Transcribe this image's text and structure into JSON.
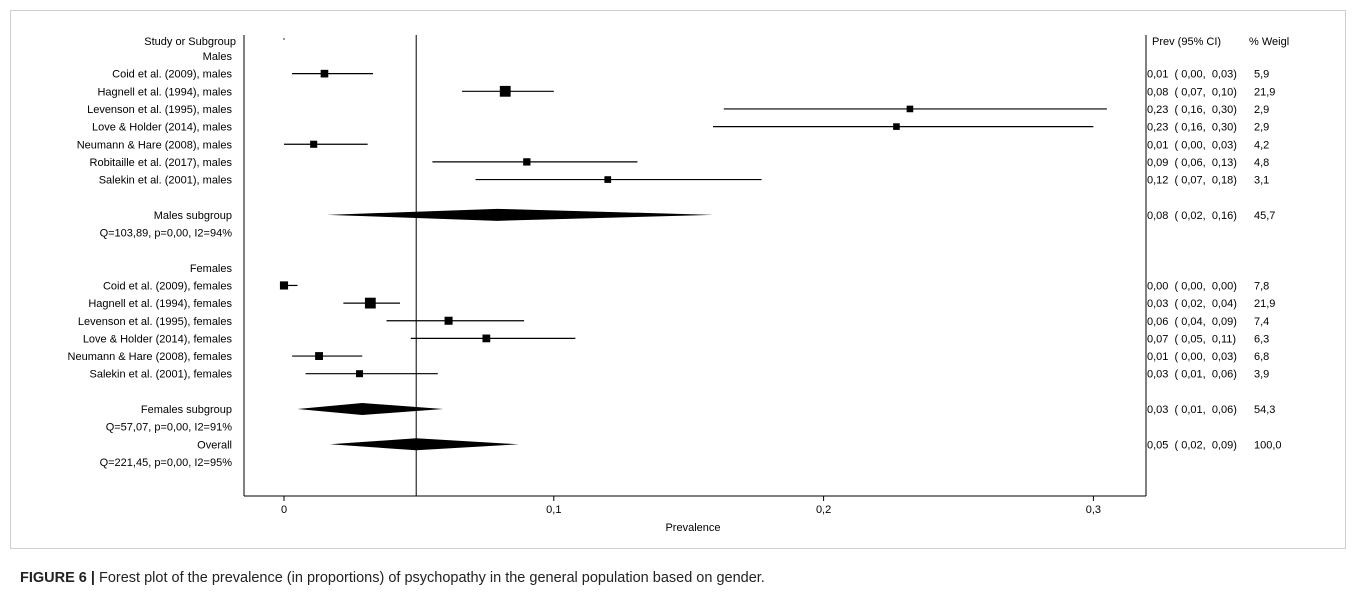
{
  "caption": {
    "label": "FIGURE 6 |",
    "text": " Forest plot of the prevalence (in proportions) of psychopathy in the general population based on gender."
  },
  "headers": {
    "study": "Study or Subgroup",
    "estimate": "Prev (95% CI)",
    "weight": "% Weigl"
  },
  "chart_data": {
    "type": "forest",
    "xlabel": "Prevalence",
    "xlim": [
      -0.015,
      0.32
    ],
    "xticks": [
      0,
      0.1,
      0.2,
      0.3
    ],
    "xtick_labels": [
      "0",
      "0,1",
      "0,2",
      "0,3"
    ],
    "reference_line": 0.049,
    "rows": [
      {
        "kind": "header",
        "label": "Males"
      },
      {
        "kind": "study",
        "label": "Coid et al. (2009), males",
        "est": 0.015,
        "lo": 0.003,
        "hi": 0.033,
        "weight": 5.9,
        "ci_text": "0,01  ( 0,00,  0,03)",
        "weight_text": "5,9"
      },
      {
        "kind": "study",
        "label": "Hagnell et al. (1994), males",
        "est": 0.082,
        "lo": 0.066,
        "hi": 0.1,
        "weight": 21.9,
        "ci_text": "0,08  ( 0,07,  0,10)",
        "weight_text": "21,9"
      },
      {
        "kind": "study",
        "label": "Levenson et al. (1995), males",
        "est": 0.232,
        "lo": 0.163,
        "hi": 0.305,
        "weight": 2.9,
        "ci_text": "0,23  ( 0,16,  0,30)",
        "weight_text": "2,9"
      },
      {
        "kind": "study",
        "label": "Love & Holder (2014), males",
        "est": 0.227,
        "lo": 0.159,
        "hi": 0.3,
        "weight": 2.9,
        "ci_text": "0,23  ( 0,16,  0,30)",
        "weight_text": "2,9"
      },
      {
        "kind": "study",
        "label": "Neumann & Hare (2008), males",
        "est": 0.011,
        "lo": 0.0,
        "hi": 0.031,
        "weight": 4.2,
        "ci_text": "0,01  ( 0,00,  0,03)",
        "weight_text": "4,2"
      },
      {
        "kind": "study",
        "label": "Robitaille et al. (2017), males",
        "est": 0.09,
        "lo": 0.055,
        "hi": 0.131,
        "weight": 4.8,
        "ci_text": "0,09  ( 0,06,  0,13)",
        "weight_text": "4,8"
      },
      {
        "kind": "study",
        "label": "Salekin et al. (2001), males",
        "est": 0.12,
        "lo": 0.071,
        "hi": 0.177,
        "weight": 3.1,
        "ci_text": "0,12  ( 0,07,  0,18)",
        "weight_text": "3,1"
      },
      {
        "kind": "blank"
      },
      {
        "kind": "subtotal",
        "label": "Males subgroup",
        "est": 0.079,
        "lo": 0.016,
        "hi": 0.159,
        "weight": 45.7,
        "ci_text": "0,08  ( 0,02,  0,16)",
        "weight_text": "45,7",
        "stats": "Q=103,89, p=0,00, I2=94%"
      },
      {
        "kind": "blank"
      },
      {
        "kind": "blank"
      },
      {
        "kind": "header",
        "label": "Females"
      },
      {
        "kind": "study",
        "label": "Coid et al. (2009), females",
        "est": 0.0,
        "lo": 0.0,
        "hi": 0.005,
        "weight": 7.8,
        "ci_text": "0,00  ( 0,00,  0,00)",
        "weight_text": "7,8"
      },
      {
        "kind": "study",
        "label": "Hagnell et al. (1994), females",
        "est": 0.032,
        "lo": 0.022,
        "hi": 0.043,
        "weight": 21.9,
        "ci_text": "0,03  ( 0,02,  0,04)",
        "weight_text": "21,9"
      },
      {
        "kind": "study",
        "label": "Levenson et al. (1995), females",
        "est": 0.061,
        "lo": 0.038,
        "hi": 0.089,
        "weight": 7.4,
        "ci_text": "0,06  ( 0,04,  0,09)",
        "weight_text": "7,4"
      },
      {
        "kind": "study",
        "label": "Love & Holder (2014), females",
        "est": 0.075,
        "lo": 0.047,
        "hi": 0.108,
        "weight": 6.3,
        "ci_text": "0,07  ( 0,05,  0,11)",
        "weight_text": "6,3"
      },
      {
        "kind": "study",
        "label": "Neumann & Hare (2008), females",
        "est": 0.013,
        "lo": 0.003,
        "hi": 0.029,
        "weight": 6.8,
        "ci_text": "0,01  ( 0,00,  0,03)",
        "weight_text": "6,8"
      },
      {
        "kind": "study",
        "label": "Salekin et al. (2001), females",
        "est": 0.028,
        "lo": 0.008,
        "hi": 0.057,
        "weight": 3.9,
        "ci_text": "0,03  ( 0,01,  0,06)",
        "weight_text": "3,9"
      },
      {
        "kind": "blank"
      },
      {
        "kind": "subtotal",
        "label": "Females subgroup",
        "est": 0.029,
        "lo": 0.005,
        "hi": 0.059,
        "weight": 54.3,
        "ci_text": "0,03  ( 0,01,  0,06)",
        "weight_text": "54,3",
        "stats": "Q=57,07, p=0,00, I2=91%"
      },
      {
        "kind": "blank"
      },
      {
        "kind": "subtotal",
        "label": "Overall",
        "est": 0.049,
        "lo": 0.017,
        "hi": 0.087,
        "weight": 100.0,
        "ci_text": "0,05  ( 0,02,  0,09)",
        "weight_text": "100,0",
        "stats": "Q=221,45, p=0,00, I2=95%"
      }
    ]
  }
}
